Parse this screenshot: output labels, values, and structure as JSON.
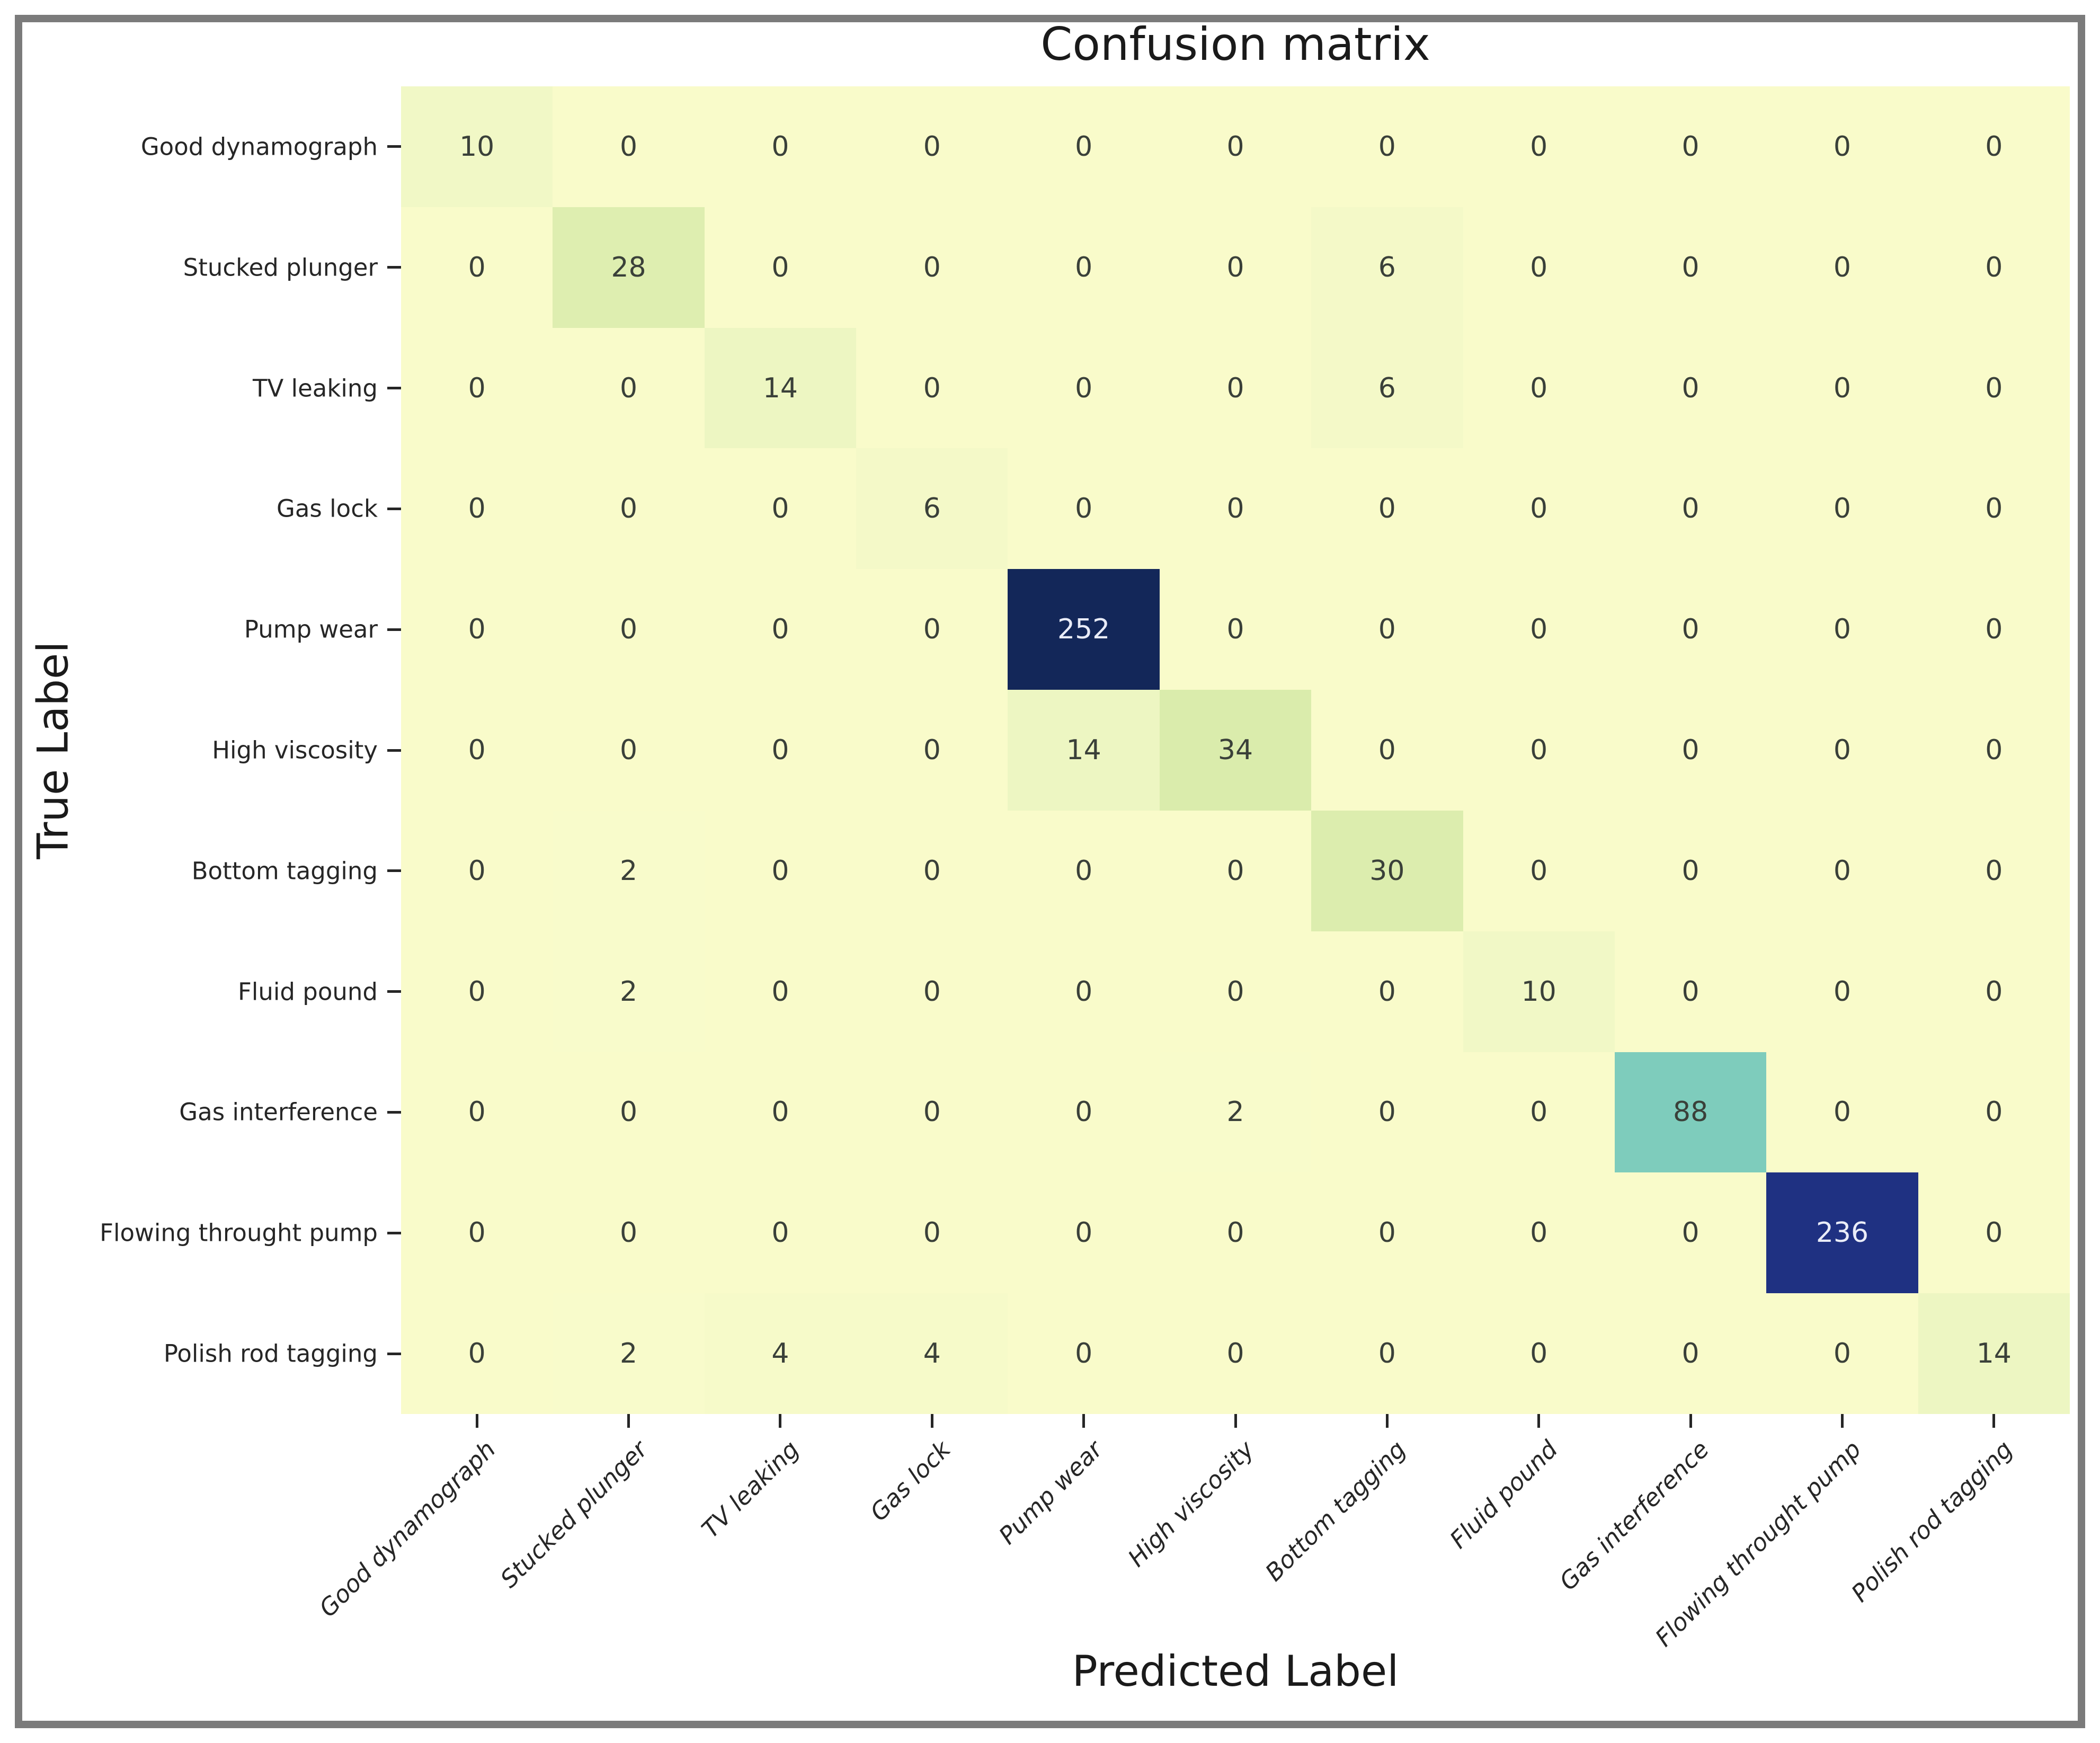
{
  "figure": {
    "frame_color": "#7b7b7b",
    "background_color": "#ffffff"
  },
  "chart_data": {
    "type": "heatmap",
    "title": "Confusion matrix",
    "xlabel": "Predicted Label",
    "ylabel": "True Label",
    "colormap_name": "YlGnBu",
    "grid": false,
    "legend": false,
    "x_tick_labels": [
      "Good dynamograph",
      "Stucked plunger",
      "TV leaking",
      "Gas lock",
      "Pump wear",
      "High viscosity",
      "Bottom tagging",
      "Fluid pound",
      "Gas interference",
      "Flowing throught pump",
      "Polish rod tagging"
    ],
    "y_tick_labels": [
      "Good dynamograph",
      "Stucked plunger",
      "TV leaking",
      "Gas lock",
      "Pump wear",
      "High viscosity",
      "Bottom tagging",
      "Fluid pound",
      "Gas interference",
      "Flowing throught pump",
      "Polish rod tagging"
    ],
    "matrix": [
      [
        10,
        0,
        0,
        0,
        0,
        0,
        0,
        0,
        0,
        0,
        0
      ],
      [
        0,
        28,
        0,
        0,
        0,
        0,
        6,
        0,
        0,
        0,
        0
      ],
      [
        0,
        0,
        14,
        0,
        0,
        0,
        6,
        0,
        0,
        0,
        0
      ],
      [
        0,
        0,
        0,
        6,
        0,
        0,
        0,
        0,
        0,
        0,
        0
      ],
      [
        0,
        0,
        0,
        0,
        252,
        0,
        0,
        0,
        0,
        0,
        0
      ],
      [
        0,
        0,
        0,
        0,
        14,
        34,
        0,
        0,
        0,
        0,
        0
      ],
      [
        0,
        2,
        0,
        0,
        0,
        0,
        30,
        0,
        0,
        0,
        0
      ],
      [
        0,
        2,
        0,
        0,
        0,
        0,
        0,
        10,
        0,
        0,
        0
      ],
      [
        0,
        0,
        0,
        0,
        0,
        2,
        0,
        0,
        88,
        0,
        0
      ],
      [
        0,
        0,
        0,
        0,
        0,
        0,
        0,
        0,
        0,
        236,
        0
      ],
      [
        0,
        2,
        4,
        4,
        0,
        0,
        0,
        0,
        0,
        0,
        14
      ]
    ],
    "value_range": [
      0,
      252
    ],
    "value_colors": {
      "0": "#f9fbca",
      "2": "#f8fbcb",
      "4": "#f6fac9",
      "6": "#f4f9c8",
      "10": "#f1f8c6",
      "14": "#edf6c2",
      "28": "#deeeb0",
      "30": "#dcedae",
      "34": "#daecac",
      "88": "#7eccbc",
      "236": "#1f3182",
      "252": "#132759"
    },
    "text_color_light_cells": "#3a4039",
    "text_color_dark_cells": "#e9ecf8",
    "dark_text_threshold": 100,
    "tick_color": "#262626"
  }
}
